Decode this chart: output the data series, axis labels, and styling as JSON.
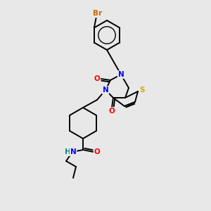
{
  "background_color": "#e8e8e8",
  "bond_color": "#000000",
  "atom_colors": {
    "N": "#0000ff",
    "O": "#ff0000",
    "S": "#ccaa00",
    "Br": "#cc6600",
    "H": "#008888",
    "C": "#000000"
  },
  "figsize": [
    3.0,
    3.0
  ],
  "dpi": 100
}
